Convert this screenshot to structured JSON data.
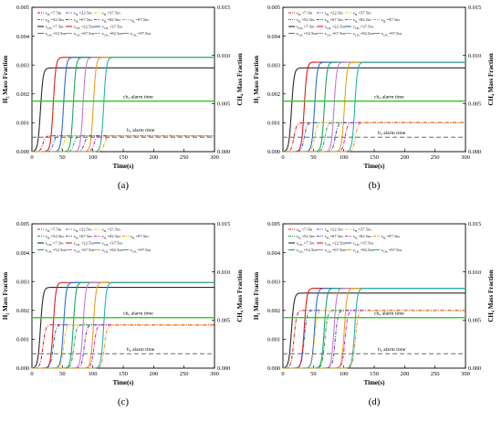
{
  "figure": {
    "panel_labels": [
      "(a)",
      "(b)",
      "(c)",
      "(d)"
    ]
  },
  "shared_text": {
    "ylabel_left": "H₂ Mass Fraction",
    "ylabel_right": "CH₄ Mass Fraction",
    "xlabel": "Time(s)",
    "ch4_alarm_label": "ch₄ alarm time",
    "h2_alarm_label": "h₂ alarm time",
    "legend_rows": [
      [
        "x_H2=7.5m",
        "x_H2=22.5m",
        "x_H2=37.5m"
      ],
      [
        "x_H2=52.5m",
        "x_H2=67.5m",
        "x_H2=82.5m",
        "x_H2=97.5m"
      ],
      [
        "x_CH4=7.5m",
        "x_CH4=22.5m",
        "x_CH4=37.5m"
      ],
      [
        "x_CH4=52.5m",
        "x_CH4=67.5m",
        "x_CH4=82.5m",
        "x_CH4=97.5m"
      ]
    ]
  },
  "colors": {
    "series": [
      "#e41a1c",
      "#2a6fd6",
      "#f2c314",
      "#22a84a",
      "#6a3fb5",
      "#d61fc7",
      "#ff8c00"
    ],
    "ch4_series": [
      "#2b2b2b",
      "#e41a1c",
      "#2a6fd6",
      "#1aa86a",
      "#c77bd6",
      "#e8a317",
      "#1fb5b0"
    ],
    "ch4_alarm": "#2ecc1a",
    "h2_alarm": "#555555"
  },
  "chart_data": [
    {
      "type": "line",
      "title": "(a)",
      "xlabel": "Time(s)",
      "ylabel": "H₂ Mass Fraction",
      "y2label": "CH₄ Mass Fraction",
      "xlim": [
        0,
        300
      ],
      "ylim": [
        0,
        0.005
      ],
      "y2lim": [
        0,
        0.015
      ],
      "x_ticks": [
        0,
        50,
        100,
        150,
        200,
        250,
        300
      ],
      "y_ticks": [
        "0.000",
        "0.001",
        "0.002",
        "0.003",
        "0.004",
        "0.005"
      ],
      "y2_ticks": [
        "0.000",
        "0.005",
        "0.010",
        "0.015"
      ],
      "ch4_alarm_level_y2": 0.00525,
      "h2_alarm_level": 0.0005,
      "h2_series": [
        {
          "name": "x_H2=7.5m",
          "rise_t": 16,
          "plateau": 0.00055
        },
        {
          "name": "x_H2=22.5m",
          "rise_t": 33,
          "plateau": 0.00055
        },
        {
          "name": "x_H2=37.5m",
          "rise_t": 50,
          "plateau": 0.00055
        },
        {
          "name": "x_H2=52.5m",
          "rise_t": 67,
          "plateau": 0.00055
        },
        {
          "name": "x_H2=67.5m",
          "rise_t": 84,
          "plateau": 0.00055
        },
        {
          "name": "x_H2=82.5m",
          "rise_t": 100,
          "plateau": 0.00055
        },
        {
          "name": "x_H2=97.5m",
          "rise_t": 117,
          "plateau": 0.00055
        }
      ],
      "ch4_series": [
        {
          "name": "x_CH4=7.5m",
          "rise_t": 14,
          "plateau_y2": 0.0087
        },
        {
          "name": "x_CH4=22.5m",
          "rise_t": 35,
          "plateau_y2": 0.0098
        },
        {
          "name": "x_CH4=37.5m",
          "rise_t": 52,
          "plateau_y2": 0.0098
        },
        {
          "name": "x_CH4=52.5m",
          "rise_t": 68,
          "plateau_y2": 0.0098
        },
        {
          "name": "x_CH4=67.5m",
          "rise_t": 84,
          "plateau_y2": 0.0098
        },
        {
          "name": "x_CH4=82.5m",
          "rise_t": 101,
          "plateau_y2": 0.0098
        },
        {
          "name": "x_CH4=97.5m",
          "rise_t": 118,
          "plateau_y2": 0.0098
        }
      ]
    },
    {
      "type": "line",
      "title": "(b)",
      "xlabel": "Time(s)",
      "ylabel": "H₂ Mass Fraction",
      "y2label": "CH₄ Mass Fraction",
      "xlim": [
        0,
        300
      ],
      "ylim": [
        0,
        0.005
      ],
      "y2lim": [
        0,
        0.015
      ],
      "x_ticks": [
        0,
        50,
        100,
        150,
        200,
        250,
        300
      ],
      "y_ticks": [
        "0.000",
        "0.001",
        "0.002",
        "0.003",
        "0.004",
        "0.005"
      ],
      "y2_ticks": [
        "0.000",
        "0.005",
        "0.010",
        "0.015"
      ],
      "ch4_alarm_level_y2": 0.00525,
      "h2_alarm_level": 0.0005,
      "h2_series": [
        {
          "name": "x_H2=7.5m",
          "rise_t": 16,
          "plateau": 0.001
        },
        {
          "name": "x_H2=22.5m",
          "rise_t": 33,
          "plateau": 0.001
        },
        {
          "name": "x_H2=37.5m",
          "rise_t": 50,
          "plateau": 0.001
        },
        {
          "name": "x_H2=52.5m",
          "rise_t": 67,
          "plateau": 0.001
        },
        {
          "name": "x_H2=67.5m",
          "rise_t": 84,
          "plateau": 0.001
        },
        {
          "name": "x_H2=82.5m",
          "rise_t": 100,
          "plateau": 0.001
        },
        {
          "name": "x_H2=97.5m",
          "rise_t": 117,
          "plateau": 0.001
        }
      ],
      "ch4_series": [
        {
          "name": "x_CH4=7.5m",
          "rise_t": 14,
          "plateau_y2": 0.0087
        },
        {
          "name": "x_CH4=22.5m",
          "rise_t": 35,
          "plateau_y2": 0.0093
        },
        {
          "name": "x_CH4=37.5m",
          "rise_t": 52,
          "plateau_y2": 0.0093
        },
        {
          "name": "x_CH4=52.5m",
          "rise_t": 68,
          "plateau_y2": 0.0093
        },
        {
          "name": "x_CH4=67.5m",
          "rise_t": 84,
          "plateau_y2": 0.0093
        },
        {
          "name": "x_CH4=82.5m",
          "rise_t": 101,
          "plateau_y2": 0.0093
        },
        {
          "name": "x_CH4=97.5m",
          "rise_t": 118,
          "plateau_y2": 0.0093
        }
      ]
    },
    {
      "type": "line",
      "title": "(c)",
      "xlabel": "Time(s)",
      "ylabel": "H₂ Mass Fraction",
      "y2label": "CH₄ Mass Fraction",
      "xlim": [
        0,
        300
      ],
      "ylim": [
        0,
        0.005
      ],
      "y2lim": [
        0,
        0.015
      ],
      "x_ticks": [
        0,
        50,
        100,
        150,
        200,
        250,
        300
      ],
      "y_ticks": [
        "0.000",
        "0.001",
        "0.002",
        "0.003",
        "0.004",
        "0.005"
      ],
      "y2_ticks": [
        "0.000",
        "0.005",
        "0.010",
        "0.015"
      ],
      "ch4_alarm_level_y2": 0.00525,
      "h2_alarm_level": 0.0005,
      "h2_series": [
        {
          "name": "x_H2=7.5m",
          "rise_t": 16,
          "plateau": 0.0015
        },
        {
          "name": "x_H2=22.5m",
          "rise_t": 33,
          "plateau": 0.0015
        },
        {
          "name": "x_H2=37.5m",
          "rise_t": 50,
          "plateau": 0.0015
        },
        {
          "name": "x_H2=52.5m",
          "rise_t": 67,
          "plateau": 0.0015
        },
        {
          "name": "x_H2=67.5m",
          "rise_t": 84,
          "plateau": 0.0015
        },
        {
          "name": "x_H2=82.5m",
          "rise_t": 100,
          "plateau": 0.0015
        },
        {
          "name": "x_H2=97.5m",
          "rise_t": 117,
          "plateau": 0.0015
        }
      ],
      "ch4_series": [
        {
          "name": "x_CH4=7.5m",
          "rise_t": 14,
          "plateau_y2": 0.0084
        },
        {
          "name": "x_CH4=22.5m",
          "rise_t": 35,
          "plateau_y2": 0.0089
        },
        {
          "name": "x_CH4=37.5m",
          "rise_t": 52,
          "plateau_y2": 0.0089
        },
        {
          "name": "x_CH4=52.5m",
          "rise_t": 68,
          "plateau_y2": 0.0089
        },
        {
          "name": "x_CH4=67.5m",
          "rise_t": 84,
          "plateau_y2": 0.0089
        },
        {
          "name": "x_CH4=82.5m",
          "rise_t": 101,
          "plateau_y2": 0.0089
        },
        {
          "name": "x_CH4=97.5m",
          "rise_t": 118,
          "plateau_y2": 0.0089
        }
      ]
    },
    {
      "type": "line",
      "title": "(d)",
      "xlabel": "Time(s)",
      "ylabel": "H₂ Mass Fraction",
      "y2label": "CH₄ Mass Fraction",
      "xlim": [
        0,
        300
      ],
      "ylim": [
        0,
        0.005
      ],
      "y2lim": [
        0,
        0.015
      ],
      "x_ticks": [
        0,
        50,
        100,
        150,
        200,
        250,
        300
      ],
      "y_ticks": [
        "0.000",
        "0.001",
        "0.002",
        "0.003",
        "0.004",
        "0.005"
      ],
      "y2_ticks": [
        "0.000",
        "0.005",
        "0.010",
        "0.015"
      ],
      "ch4_alarm_level_y2": 0.00525,
      "h2_alarm_level": 0.0005,
      "h2_series": [
        {
          "name": "x_H2=7.5m",
          "rise_t": 16,
          "plateau": 0.002
        },
        {
          "name": "x_H2=22.5m",
          "rise_t": 33,
          "plateau": 0.002
        },
        {
          "name": "x_H2=37.5m",
          "rise_t": 50,
          "plateau": 0.002
        },
        {
          "name": "x_H2=52.5m",
          "rise_t": 67,
          "plateau": 0.002
        },
        {
          "name": "x_H2=67.5m",
          "rise_t": 84,
          "plateau": 0.002
        },
        {
          "name": "x_H2=82.5m",
          "rise_t": 100,
          "plateau": 0.002
        },
        {
          "name": "x_H2=97.5m",
          "rise_t": 117,
          "plateau": 0.002
        }
      ],
      "ch4_series": [
        {
          "name": "x_CH4=7.5m",
          "rise_t": 14,
          "plateau_y2": 0.0078
        },
        {
          "name": "x_CH4=22.5m",
          "rise_t": 35,
          "plateau_y2": 0.0083
        },
        {
          "name": "x_CH4=37.5m",
          "rise_t": 52,
          "plateau_y2": 0.0083
        },
        {
          "name": "x_CH4=52.5m",
          "rise_t": 68,
          "plateau_y2": 0.0083
        },
        {
          "name": "x_CH4=67.5m",
          "rise_t": 84,
          "plateau_y2": 0.0083
        },
        {
          "name": "x_CH4=82.5m",
          "rise_t": 101,
          "plateau_y2": 0.0083
        },
        {
          "name": "x_CH4=97.5m",
          "rise_t": 118,
          "plateau_y2": 0.0083
        }
      ]
    }
  ]
}
